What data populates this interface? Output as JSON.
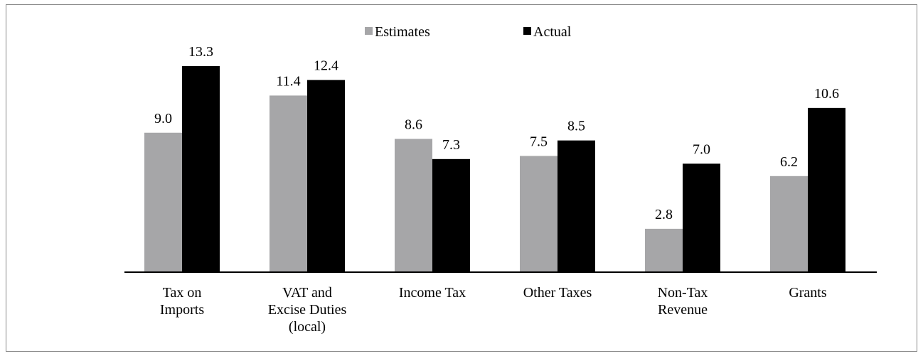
{
  "chart_data": {
    "type": "bar",
    "categories": [
      "Tax on\nImports",
      "VAT and\nExcise Duties\n(local)",
      "Income Tax",
      "Other Taxes",
      "Non-Tax\nRevenue",
      "Grants"
    ],
    "series": [
      {
        "name": "Estimates",
        "color": "#a6a6a8",
        "values": [
          9.0,
          11.4,
          8.6,
          7.5,
          2.8,
          6.2
        ],
        "value_labels": [
          "9.0",
          "11.4",
          "8.6",
          "7.5",
          "2.8",
          "6.2"
        ]
      },
      {
        "name": "Actual",
        "color": "#000000",
        "values": [
          13.3,
          12.4,
          7.3,
          8.5,
          7.0,
          10.6
        ],
        "value_labels": [
          "13.3",
          "12.4",
          "7.3",
          "8.5",
          "7.0",
          "10.6"
        ]
      }
    ],
    "legend": "top"
  }
}
